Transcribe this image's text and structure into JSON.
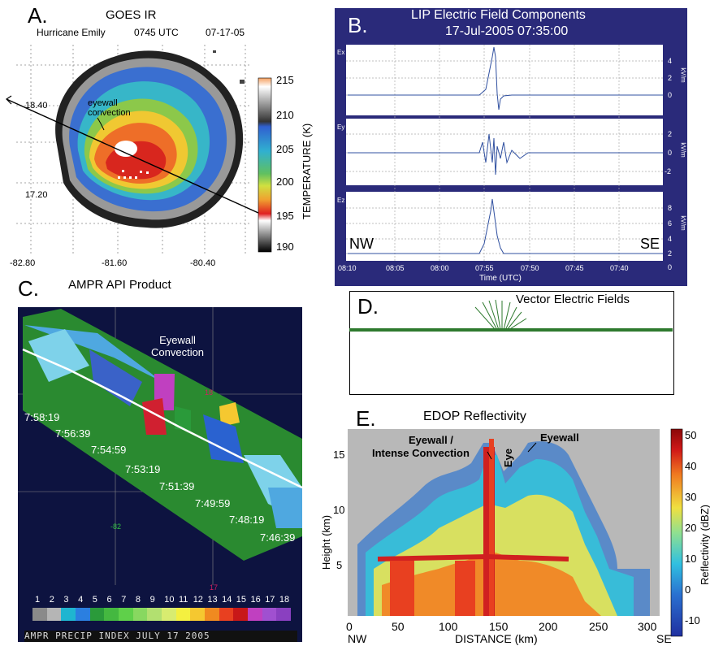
{
  "panelA": {
    "letter": "A.",
    "title": "GOES IR",
    "subtitle_storm": "Hurricane Emily",
    "subtitle_time": "0745 UTC",
    "subtitle_date": "07-17-05",
    "annotation": "eyewall\nconvection",
    "yticks": [
      "18.40",
      "17.20"
    ],
    "xticks": [
      "-82.80",
      "-81.60",
      "-80.40"
    ],
    "colorbar_ticks": [
      "215",
      "210",
      "205",
      "200",
      "195",
      "190"
    ],
    "colorbar_label": "TEMPERATURE (K)"
  },
  "panelB": {
    "letter": "B.",
    "title": "LIP Electric Field Components",
    "subtitle": "17-Jul-2005 07:35:00",
    "channels": [
      {
        "name": "Ex",
        "unit": "kV/m",
        "ticks": [
          "4",
          "2",
          "0"
        ]
      },
      {
        "name": "Ey",
        "unit": "kV/m",
        "ticks": [
          "2",
          "0",
          "-2"
        ]
      },
      {
        "name": "Ez",
        "unit": "kV/m",
        "ticks": [
          "8",
          "6",
          "4",
          "2",
          "0"
        ]
      }
    ],
    "xticks": [
      "08:10",
      "08:05",
      "08:00",
      "07:55",
      "07:50",
      "07:45",
      "07:40"
    ],
    "xlabel": "Time (UTC)",
    "left_dir": "NW",
    "right_dir": "SE"
  },
  "panelC": {
    "letter": "C.",
    "title": "AMPR API Product",
    "annotation": "Eyewall\nConvection",
    "times": [
      "7:58:19",
      "7:56:39",
      "7:54:59",
      "7:53:19",
      "7:51:39",
      "7:49:59",
      "7:48:19",
      "7:46:39"
    ],
    "grid_labels": [
      "18",
      "-82",
      "17"
    ],
    "scale_values": [
      "1",
      "2",
      "3",
      "4",
      "5",
      "6",
      "7",
      "8",
      "9",
      "10",
      "11",
      "12",
      "13",
      "14",
      "15",
      "16",
      "17",
      "18"
    ],
    "scale_colors": [
      "#8a8a8a",
      "#b5b5b5",
      "#1fb5d0",
      "#2b7fe0",
      "#2a9a3a",
      "#44b840",
      "#5fd04a",
      "#88d860",
      "#b2e070",
      "#d8ec70",
      "#f4f040",
      "#f5c830",
      "#f08a20",
      "#e84020",
      "#c81818",
      "#c040c0",
      "#a050d0",
      "#8a40c0"
    ],
    "footer": "AMPR PRECIP INDEX  JULY 17 2005"
  },
  "panelD": {
    "letter": "D.",
    "title": "Vector Electric Fields"
  },
  "panelE": {
    "letter": "E.",
    "title": "EDOP Reflectivity",
    "annotations": [
      "Eyewall /",
      "Intense Convection",
      "Eye",
      "Eyewall"
    ],
    "ylabel": "Height (km)",
    "yticks": [
      "15",
      "10",
      "5"
    ],
    "xlabel": "DISTANCE (km)",
    "xticks": [
      "0",
      "50",
      "100",
      "150",
      "200",
      "250",
      "300"
    ],
    "left_dir": "NW",
    "right_dir": "SE",
    "colorbar_label": "Reflectivity (dBZ)",
    "colorbar_ticks": [
      "50",
      "40",
      "30",
      "20",
      "10",
      "0",
      "-10"
    ]
  }
}
